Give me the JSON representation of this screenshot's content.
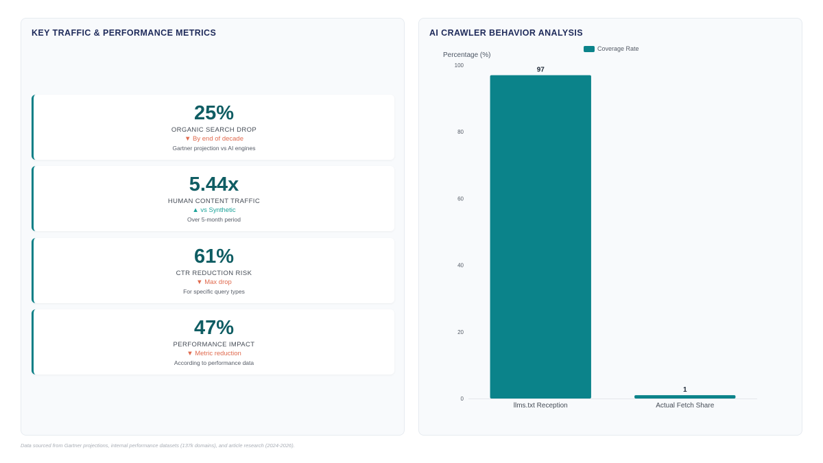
{
  "left_panel": {
    "title": "KEY TRAFFIC & PERFORMANCE METRICS",
    "metrics": [
      {
        "value": "25%",
        "label": "ORGANIC SEARCH DROP",
        "trend": "▼ By end of decade",
        "note": "Gartner projection vs AI engines"
      },
      {
        "value": "5.44x",
        "label": "HUMAN CONTENT TRAFFIC",
        "trend": "▲ vs Synthetic",
        "note": "Over 5-month period"
      },
      {
        "value": "61%",
        "label": "CTR REDUCTION RISK",
        "trend": "▼ Max drop",
        "note": "For specific query types"
      },
      {
        "value": "47%",
        "label": "PERFORMANCE IMPACT",
        "trend": "▼ Metric reduction",
        "note": "According to performance data"
      }
    ]
  },
  "right_panel": {
    "title": "AI CRAWLER BEHAVIOR ANALYSIS"
  },
  "chart_data": {
    "type": "bar",
    "categories": [
      "llms.txt Reception",
      "Actual Fetch Share"
    ],
    "series": [
      {
        "name": "Coverage Rate",
        "values": [
          97,
          1
        ]
      }
    ],
    "ylabel": "Percentage (%)",
    "ylim": [
      0,
      100
    ],
    "yticks": [
      0,
      20,
      40,
      60,
      80,
      100
    ],
    "color": "#0b838a",
    "legend": "top"
  },
  "footer": "Data sourced from Gartner projections, internal performance datasets (137k domains), and article research (2024-2026)."
}
